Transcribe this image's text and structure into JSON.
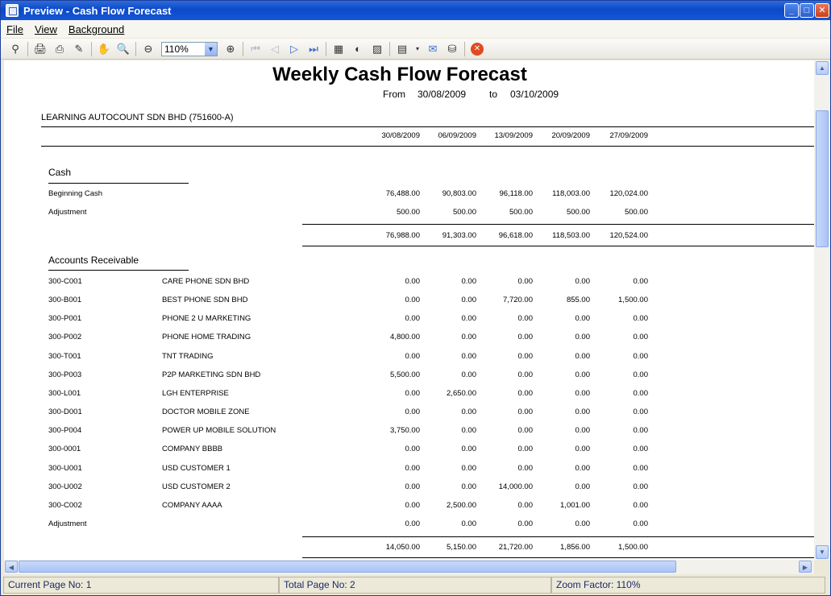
{
  "window": {
    "title": "Preview - Cash Flow Forecast"
  },
  "menu": [
    "File",
    "View",
    "Background"
  ],
  "toolbar": {
    "zoom_value": "110%"
  },
  "report": {
    "title": "Weekly Cash Flow Forecast",
    "from_label": "From",
    "from_date": "30/08/2009",
    "to_label": "to",
    "to_date": "03/10/2009",
    "company": "LEARNING AUTOCOUNT SDN BHD (751600-A)",
    "periods": [
      "30/08/2009",
      "06/09/2009",
      "13/09/2009",
      "20/09/2009",
      "27/09/2009"
    ],
    "cash": {
      "heading": "Cash",
      "rows": [
        {
          "label": "Beginning Cash",
          "values": [
            "76,488.00",
            "90,803.00",
            "96,118.00",
            "118,003.00",
            "120,024.00"
          ]
        },
        {
          "label": "Adjustment",
          "values": [
            "500.00",
            "500.00",
            "500.00",
            "500.00",
            "500.00"
          ]
        }
      ],
      "totals": [
        "76,988.00",
        "91,303.00",
        "96,618.00",
        "118,503.00",
        "120,524.00"
      ]
    },
    "ar": {
      "heading": "Accounts Receivable",
      "rows": [
        {
          "code": "300-C001",
          "name": "CARE PHONE SDN BHD",
          "values": [
            "0.00",
            "0.00",
            "0.00",
            "0.00",
            "0.00"
          ]
        },
        {
          "code": "300-B001",
          "name": "BEST PHONE SDN BHD",
          "values": [
            "0.00",
            "0.00",
            "7,720.00",
            "855.00",
            "1,500.00"
          ]
        },
        {
          "code": "300-P001",
          "name": "PHONE 2 U MARKETING",
          "values": [
            "0.00",
            "0.00",
            "0.00",
            "0.00",
            "0.00"
          ]
        },
        {
          "code": "300-P002",
          "name": "PHONE HOME TRADING",
          "values": [
            "4,800.00",
            "0.00",
            "0.00",
            "0.00",
            "0.00"
          ]
        },
        {
          "code": "300-T001",
          "name": "TNT TRADING",
          "values": [
            "0.00",
            "0.00",
            "0.00",
            "0.00",
            "0.00"
          ]
        },
        {
          "code": "300-P003",
          "name": "P2P MARKETING SDN BHD",
          "values": [
            "5,500.00",
            "0.00",
            "0.00",
            "0.00",
            "0.00"
          ]
        },
        {
          "code": "300-L001",
          "name": "LGH ENTERPRISE",
          "values": [
            "0.00",
            "2,650.00",
            "0.00",
            "0.00",
            "0.00"
          ]
        },
        {
          "code": "300-D001",
          "name": "DOCTOR MOBILE ZONE",
          "values": [
            "0.00",
            "0.00",
            "0.00",
            "0.00",
            "0.00"
          ]
        },
        {
          "code": "300-P004",
          "name": "POWER UP MOBILE SOLUTION",
          "values": [
            "3,750.00",
            "0.00",
            "0.00",
            "0.00",
            "0.00"
          ]
        },
        {
          "code": "300-0001",
          "name": "COMPANY BBBB",
          "values": [
            "0.00",
            "0.00",
            "0.00",
            "0.00",
            "0.00"
          ]
        },
        {
          "code": "300-U001",
          "name": "USD CUSTOMER 1",
          "values": [
            "0.00",
            "0.00",
            "0.00",
            "0.00",
            "0.00"
          ]
        },
        {
          "code": "300-U002",
          "name": "USD CUSTOMER 2",
          "values": [
            "0.00",
            "0.00",
            "14,000.00",
            "0.00",
            "0.00"
          ]
        },
        {
          "code": "300-C002",
          "name": "COMPANY AAAA",
          "values": [
            "0.00",
            "2,500.00",
            "0.00",
            "1,001.00",
            "0.00"
          ]
        },
        {
          "code": "Adjustment",
          "name": "",
          "values": [
            "0.00",
            "0.00",
            "0.00",
            "0.00",
            "0.00"
          ]
        }
      ],
      "totals": [
        "14,050.00",
        "5,150.00",
        "21,720.00",
        "1,856.00",
        "1,500.00"
      ]
    }
  },
  "status": {
    "current": "Current Page No: 1",
    "total": "Total Page No: 2",
    "zoom": "Zoom Factor: 110%"
  }
}
